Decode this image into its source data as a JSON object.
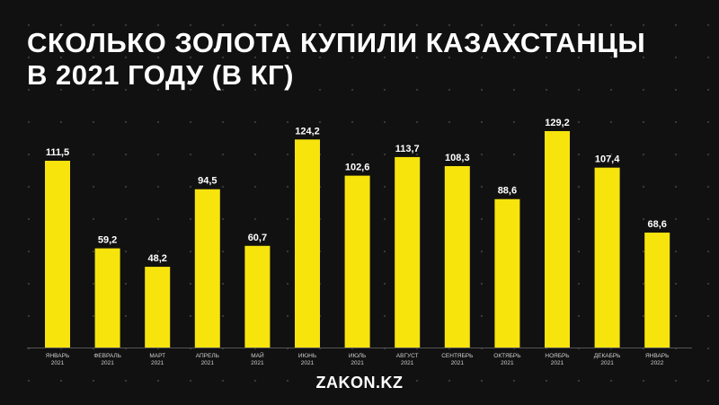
{
  "title_lines": [
    "СКОЛЬКО ЗОЛОТА КУПИЛИ КАЗАХСТАНЦЫ",
    "В 2021 ГОДУ (В КГ)"
  ],
  "footer": "ZAKON.KZ",
  "colors": {
    "background": "#111111",
    "bar": "#f7e40d",
    "text": "#ffffff"
  },
  "chart_data": {
    "type": "bar",
    "title": "СКОЛЬКО ЗОЛОТА КУПИЛИ КАЗАХСТАНЦЫ В 2021 ГОДУ (В КГ)",
    "categories": [
      [
        "ЯНВАРЬ",
        "2021"
      ],
      [
        "ФЕВРАЛЬ",
        "2021"
      ],
      [
        "МАРТ",
        "2021"
      ],
      [
        "АПРЕЛЬ",
        "2021"
      ],
      [
        "МАЙ",
        "2021"
      ],
      [
        "ИЮНЬ",
        "2021"
      ],
      [
        "ИЮЛЬ",
        "2021"
      ],
      [
        "АВГУСТ",
        "2021"
      ],
      [
        "СЕНТЯБРЬ",
        "2021"
      ],
      [
        "ОКТЯБРЬ",
        "2021"
      ],
      [
        "НОЯБРЬ",
        "2021"
      ],
      [
        "ДЕКАБРЬ",
        "2021"
      ],
      [
        "ЯНВАРЬ",
        "2022"
      ]
    ],
    "values": [
      111.5,
      59.2,
      48.2,
      94.5,
      60.7,
      124.2,
      102.6,
      113.7,
      108.3,
      88.6,
      129.2,
      107.4,
      68.6
    ],
    "value_labels": [
      "111,5",
      "59,2",
      "48,2",
      "94,5",
      "60,7",
      "124,2",
      "102,6",
      "113,7",
      "108,3",
      "88,6",
      "129,2",
      "107,4",
      "68,6"
    ],
    "xlabel": "",
    "ylabel": "",
    "ylim": [
      0,
      129.2
    ],
    "grid": false,
    "legend": "none"
  }
}
